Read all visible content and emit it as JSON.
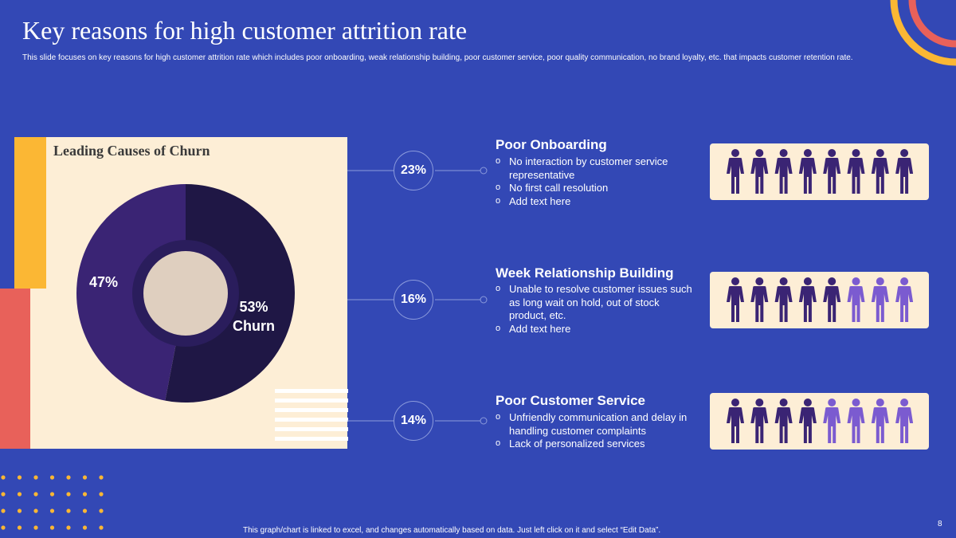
{
  "slide": {
    "title": "Key reasons for high customer attrition rate",
    "subtitle": "This slide focuses on key reasons for high customer attrition rate which includes poor onboarding, weak relationship building, poor customer service, poor quality communication, no brand loyalty,  etc. that impacts customer retention rate.",
    "footer": "This graph/chart is linked to excel,  and changes automatically based on data. Just left click on it and select “Edit Data”.",
    "page_number": "8"
  },
  "chart": {
    "title": "Leading Causes of Churn",
    "label_a": "47%",
    "label_b_value": "53%",
    "label_b_name": "Churn"
  },
  "chart_data": {
    "type": "pie",
    "title": "Leading Causes of Churn",
    "categories": [
      "",
      "Churn"
    ],
    "values": [
      47,
      53
    ],
    "colors": [
      "#3a2474",
      "#1f1745"
    ],
    "center_color": "#dfcfbf",
    "hole": true
  },
  "reasons": [
    {
      "percent": "23%",
      "title": "Poor Onboarding",
      "bullets": [
        "No interaction by customer service representative",
        "No first call resolution",
        "Add text here"
      ],
      "people_dark": 8,
      "people_total": 8
    },
    {
      "percent": "16%",
      "title": "Week Relationship Building",
      "bullets": [
        "Unable to resolve customer issues such as long wait on hold, out of stock product, etc.",
        "Add text here"
      ],
      "people_dark": 5,
      "people_total": 8
    },
    {
      "percent": "14%",
      "title": "Poor Customer Service",
      "bullets": [
        "Unfriendly  communication and delay in handling  customer complaints",
        "Lack of personalized services"
      ],
      "people_dark": 4,
      "people_total": 8
    }
  ],
  "colors": {
    "background": "#3348b5",
    "panel": "#fdeed6",
    "person_dark": "#3a2474",
    "person_light": "#7b5bd0",
    "accent_yellow": "#fbb734",
    "accent_red": "#e8615a"
  }
}
